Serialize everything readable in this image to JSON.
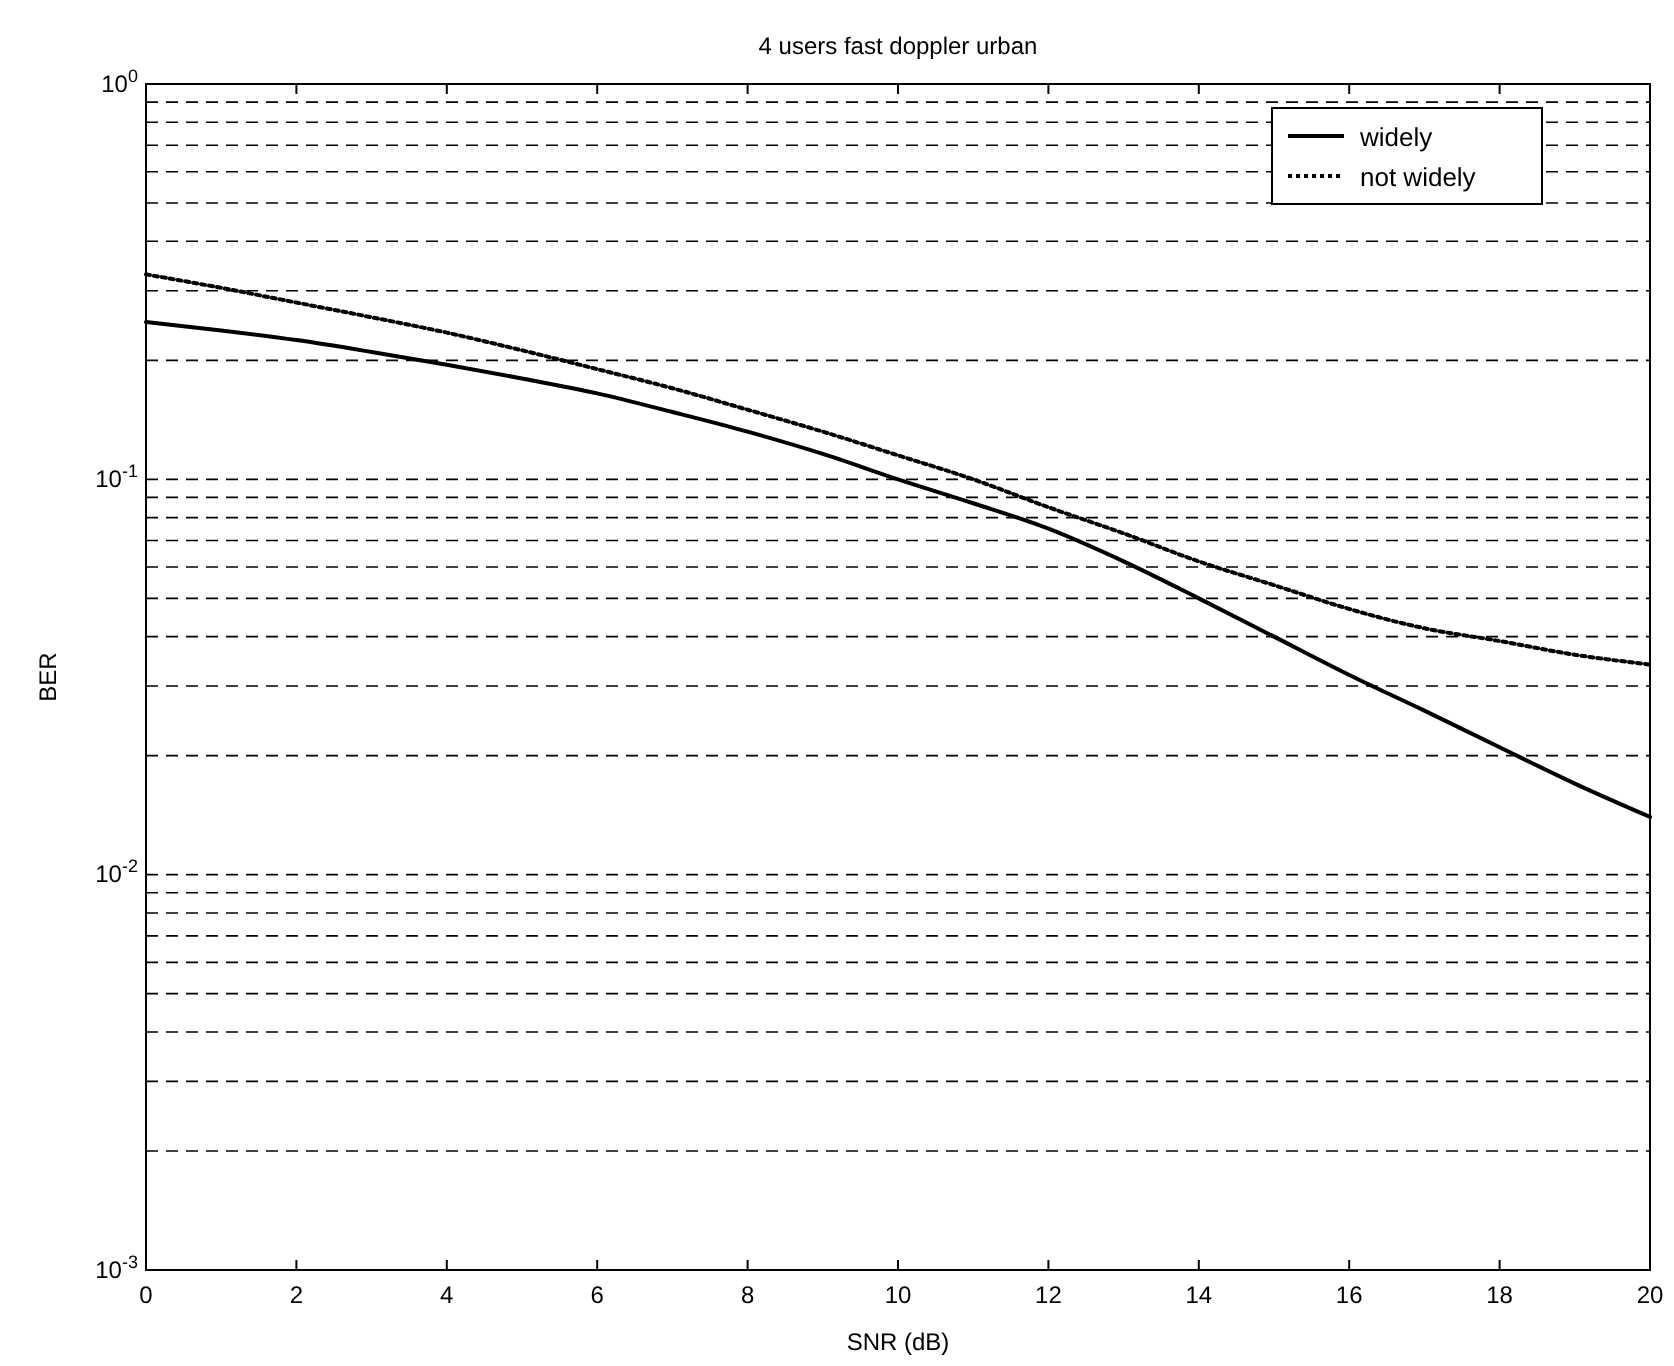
{
  "chart_data": {
    "type": "line",
    "title": "4 users fast doppler urban",
    "xlabel": "SNR (dB)",
    "ylabel": "BER",
    "x": [
      0,
      1,
      2,
      3,
      4,
      5,
      6,
      7,
      8,
      9,
      10,
      11,
      12,
      13,
      14,
      15,
      16,
      17,
      18,
      19,
      20
    ],
    "series": [
      {
        "name": "widely",
        "color": "#000000",
        "line_style": "solid",
        "values": [
          0.25,
          0.238,
          0.225,
          0.21,
          0.195,
          0.18,
          0.165,
          0.148,
          0.132,
          0.116,
          0.1,
          0.087,
          0.075,
          0.062,
          0.05,
          0.04,
          0.032,
          0.026,
          0.021,
          0.017,
          0.014
        ]
      },
      {
        "name": "not widely",
        "color": "#000000",
        "line_style": "dotted",
        "values": [
          0.33,
          0.305,
          0.28,
          0.257,
          0.235,
          0.212,
          0.19,
          0.17,
          0.15,
          0.132,
          0.115,
          0.1,
          0.085,
          0.073,
          0.062,
          0.054,
          0.047,
          0.042,
          0.039,
          0.036,
          0.034
        ]
      }
    ],
    "xlim": [
      0,
      20
    ],
    "xticks": [
      0,
      2,
      4,
      6,
      8,
      10,
      12,
      14,
      16,
      18,
      20
    ],
    "ylim": [
      0.001,
      1
    ],
    "log": "y",
    "yticks": [
      {
        "value": 0.001,
        "label": "10$^{-3}$"
      },
      {
        "value": 0.002,
        "label": null
      },
      {
        "value": 0.003,
        "label": null
      },
      {
        "value": 0.004,
        "label": null
      },
      {
        "value": 0.005,
        "label": null
      },
      {
        "value": 0.006,
        "label": null
      },
      {
        "value": 0.007,
        "label": null
      },
      {
        "value": 0.008,
        "label": null
      },
      {
        "value": 0.009,
        "label": null
      },
      {
        "value": 0.01,
        "label": "10$^{-2}$"
      },
      {
        "value": 0.02,
        "label": null
      },
      {
        "value": 0.03,
        "label": null
      },
      {
        "value": 0.04,
        "label": null
      },
      {
        "value": 0.05,
        "label": null
      },
      {
        "value": 0.06,
        "label": null
      },
      {
        "value": 0.07,
        "label": null
      },
      {
        "value": 0.08,
        "label": null
      },
      {
        "value": 0.09,
        "label": null
      },
      {
        "value": 0.1,
        "label": "10$^{-1}$"
      },
      {
        "value": 0.2,
        "label": null
      },
      {
        "value": 0.3,
        "label": null
      },
      {
        "value": 0.4,
        "label": null
      },
      {
        "value": 0.5,
        "label": null
      },
      {
        "value": 0.6,
        "label": null
      },
      {
        "value": 0.7,
        "label": null
      },
      {
        "value": 0.8,
        "label": null
      },
      {
        "value": 0.9,
        "label": null
      },
      {
        "value": 1,
        "label": "10$^{0}$"
      }
    ],
    "grid": "y",
    "legend": "top right"
  }
}
